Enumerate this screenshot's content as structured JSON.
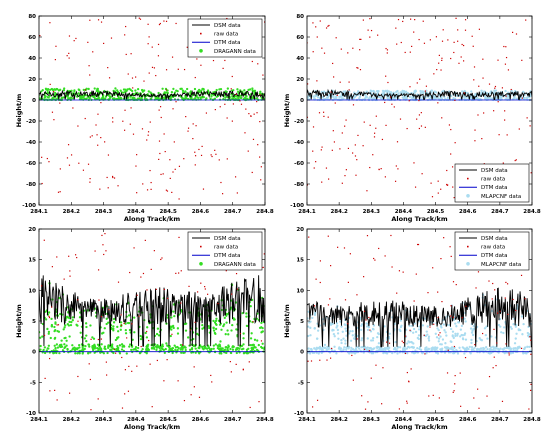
{
  "figure": {
    "background": "#ffffff"
  },
  "chart_data": [
    {
      "type": "line",
      "panel": "top-left",
      "xlabel": "Along Track/km",
      "ylabel": "Height/m",
      "xlim": [
        284.1,
        284.8
      ],
      "ylim": [
        -100,
        80
      ],
      "xticks": [
        "284.1",
        "284.2",
        "284.3",
        "284.4",
        "284.5",
        "284.6",
        "284.7",
        "284.8"
      ],
      "yticks": [
        "-100",
        "-80",
        "-60",
        "-40",
        "-20",
        "0",
        "20",
        "40",
        "60",
        "80"
      ],
      "legend_position": "top-right",
      "legend": [
        "DSM data",
        "raw data",
        "DTM data",
        "DRAGANN data"
      ],
      "noise": {
        "xmin": 284.1,
        "xmax": 284.8,
        "ymin": -95,
        "ymax": 78,
        "count": 210
      },
      "dsm": {
        "baseline": 3.0,
        "amplitude": 7.0
      },
      "dtm": {
        "level": 0.0
      },
      "classified": {
        "color": "#33dd22",
        "mode": "band",
        "low": 0.0,
        "high": 11.0,
        "count": 520
      },
      "colors": {
        "dsm": "#000000",
        "raw": "#cc0000",
        "dtm": "#0000cc"
      }
    },
    {
      "type": "line",
      "panel": "top-right",
      "xlabel": "Along Track/km",
      "ylabel": "Height/m",
      "xlim": [
        284.1,
        284.8
      ],
      "ylim": [
        -100,
        80
      ],
      "xticks": [
        "284.1",
        "284.2",
        "284.3",
        "284.4",
        "284.5",
        "284.6",
        "284.7",
        "284.8"
      ],
      "yticks": [
        "-100",
        "-80",
        "-60",
        "-40",
        "-20",
        "0",
        "20",
        "40",
        "60",
        "80"
      ],
      "legend_position": "bottom-right",
      "legend": [
        "DSM data",
        "raw data",
        "DTM data",
        "MLAPCNF data"
      ],
      "noise": {
        "xmin": 284.1,
        "xmax": 284.8,
        "ymin": -95,
        "ymax": 78,
        "count": 230
      },
      "dsm": {
        "baseline": 3.0,
        "amplitude": 7.0
      },
      "dtm": {
        "level": 0.0
      },
      "classified": {
        "color": "#aadcf0",
        "mode": "band",
        "low": 0.0,
        "high": 9.0,
        "count": 560
      },
      "colors": {
        "dsm": "#000000",
        "raw": "#cc0000",
        "dtm": "#0000cc"
      }
    },
    {
      "type": "line",
      "panel": "bottom-left",
      "xlabel": "Along Track/km",
      "ylabel": "Height/m",
      "xlim": [
        284.1,
        284.8
      ],
      "ylim": [
        -10,
        20
      ],
      "xticks": [
        "284.1",
        "284.2",
        "284.3",
        "284.4",
        "284.5",
        "284.6",
        "284.7",
        "284.8"
      ],
      "yticks": [
        "-10",
        "-5",
        "0",
        "5",
        "10",
        "15",
        "20"
      ],
      "legend_position": "top-right",
      "legend": [
        "DSM data",
        "raw data",
        "DTM data",
        "DRAGANN data"
      ],
      "noise": {
        "xmin": 284.1,
        "xmax": 284.8,
        "ymin": -9.5,
        "ymax": 19.5,
        "count": 130
      },
      "dsm": {
        "baseline": 4.5,
        "amplitude": 8.5
      },
      "dtm": {
        "level": 0.0
      },
      "classified": {
        "color": "#33dd22",
        "mode": "canopy",
        "low": -0.3,
        "high": 1.2,
        "count": 700
      },
      "colors": {
        "dsm": "#000000",
        "raw": "#cc0000",
        "dtm": "#0000cc"
      }
    },
    {
      "type": "line",
      "panel": "bottom-right",
      "xlabel": "Along Track/km",
      "ylabel": "Height/m",
      "xlim": [
        284.1,
        284.8
      ],
      "ylim": [
        -10,
        20
      ],
      "xticks": [
        "284.1",
        "284.2",
        "284.3",
        "284.4",
        "284.5",
        "284.6",
        "284.7",
        "284.8"
      ],
      "yticks": [
        "-10",
        "-5",
        "0",
        "5",
        "10",
        "15",
        "20"
      ],
      "legend_position": "top-right",
      "legend": [
        "DSM data",
        "raw data",
        "DTM data",
        "MLAPCNF data"
      ],
      "noise": {
        "xmin": 284.1,
        "xmax": 284.8,
        "ymin": -9.5,
        "ymax": 19.5,
        "count": 150
      },
      "dsm": {
        "baseline": 4.0,
        "amplitude": 6.5
      },
      "dtm": {
        "level": 0.0
      },
      "classified": {
        "color": "#aadcf0",
        "mode": "canopy",
        "low": -0.3,
        "high": 0.8,
        "count": 720
      },
      "colors": {
        "dsm": "#000000",
        "raw": "#cc0000",
        "dtm": "#0000cc"
      }
    }
  ]
}
